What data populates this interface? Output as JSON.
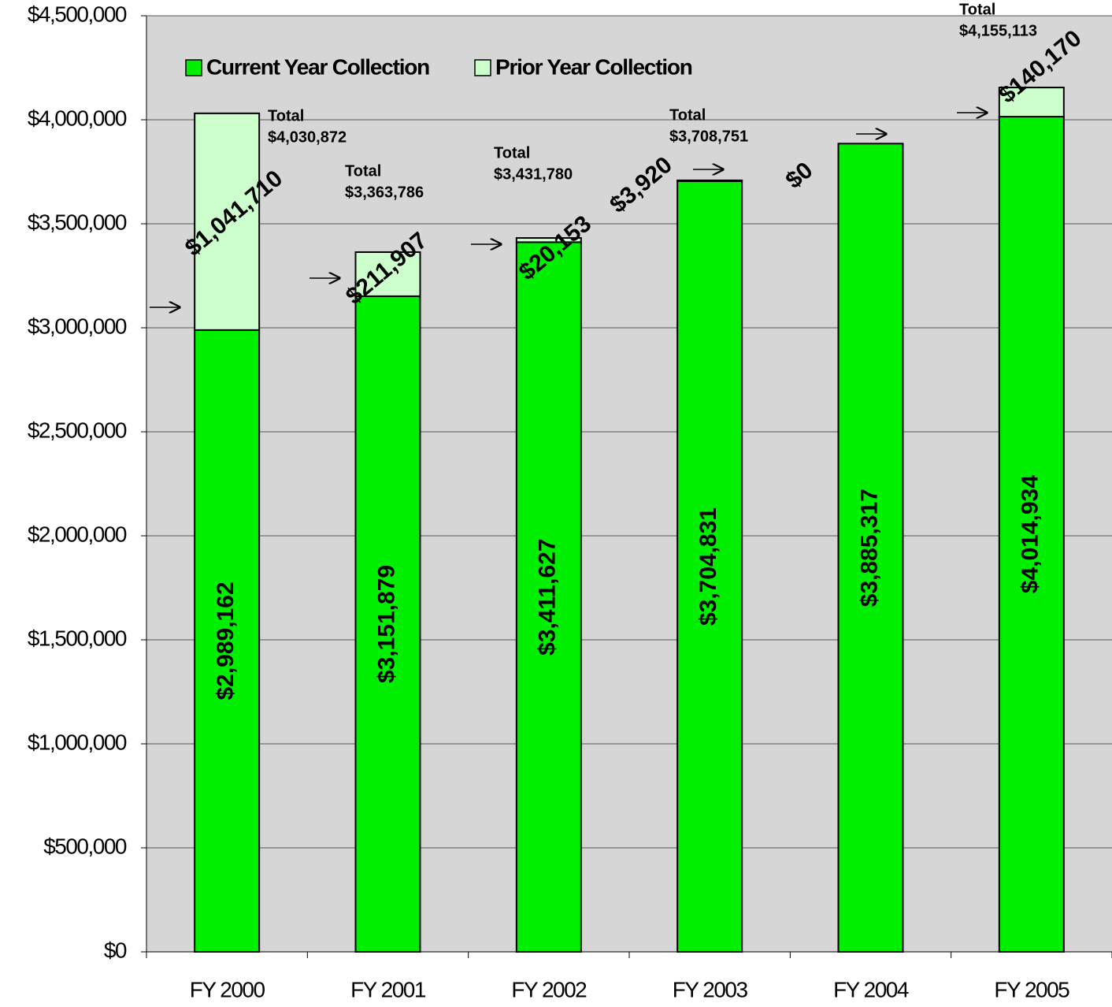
{
  "chart_data": {
    "type": "stacked_bar",
    "categories": [
      "FY 2000",
      "FY 2001",
      "FY 2002",
      "FY 2003",
      "FY 2004",
      "FY 2005"
    ],
    "series": [
      {
        "name": "Current Year Collection",
        "color": "#00ee00",
        "values": [
          2989162,
          3151879,
          3411627,
          3704831,
          3885317,
          4014934
        ],
        "value_labels": [
          "$2,989,162",
          "$3,151,879",
          "$3,411,627",
          "$3,704,831",
          "$3,885,317",
          "$4,014,934"
        ]
      },
      {
        "name": "Prior Year Collection",
        "color": "#ccffcc",
        "values": [
          1041710,
          211907,
          20153,
          3920,
          0,
          140170
        ],
        "value_labels": [
          "$1,041,710",
          "$211,907",
          "$20,153",
          "$3,920",
          "$0",
          "$140,170"
        ]
      }
    ],
    "total_label": "Total",
    "totals": [
      4030872,
      3363786,
      3431780,
      3708751,
      null,
      4155113
    ],
    "total_value_labels": [
      "$4,030,872",
      "$3,363,786",
      "$3,431,780",
      "$3,708,751",
      null,
      "$4,155,113"
    ],
    "ylim": [
      0,
      4500000
    ],
    "yticks": [
      {
        "value": 0,
        "label": "$0"
      },
      {
        "value": 500000,
        "label": "$500,000"
      },
      {
        "value": 1000000,
        "label": "$1,000,000"
      },
      {
        "value": 1500000,
        "label": "$1,500,000"
      },
      {
        "value": 2000000,
        "label": "$2,000,000"
      },
      {
        "value": 2500000,
        "label": "$2,500,000"
      },
      {
        "value": 3000000,
        "label": "$3,000,000"
      },
      {
        "value": 3500000,
        "label": "$3,500,000"
      },
      {
        "value": 4000000,
        "label": "$4,000,000"
      },
      {
        "value": 4500000,
        "label": "$4,500,000"
      }
    ],
    "grid": true,
    "legend": "top-left"
  }
}
